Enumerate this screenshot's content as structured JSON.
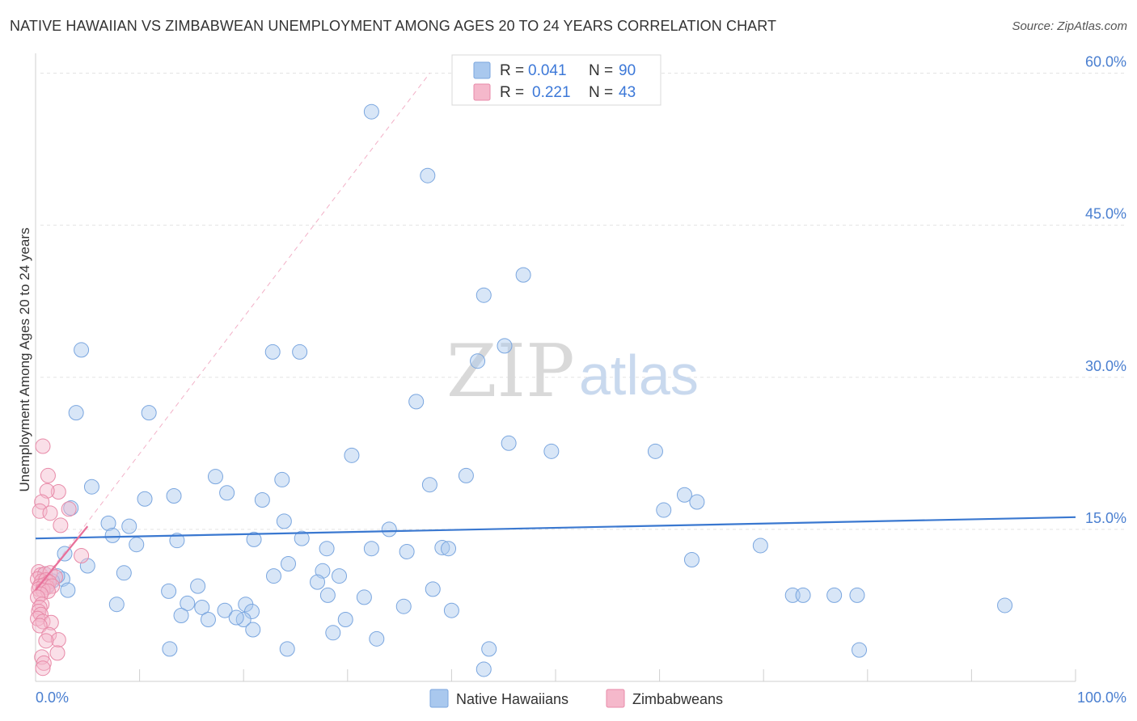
{
  "title": "NATIVE HAWAIIAN VS ZIMBABWEAN UNEMPLOYMENT AMONG AGES 20 TO 24 YEARS CORRELATION CHART",
  "source": "Source: ZipAtlas.com",
  "watermark": {
    "zip": "ZIP",
    "atlas": "atlas"
  },
  "colors": {
    "blue": "#a9c8ee",
    "blue_stroke": "#7aa6df",
    "blue_line": "#3a78d0",
    "pink": "#f5b8cb",
    "pink_stroke": "#e88aa8",
    "pink_line": "#e8709a",
    "tick": "#4a7fd0"
  },
  "legend": {
    "r_label": "R =",
    "n_label": "N =",
    "rows": [
      {
        "r": "0.041",
        "n": "90"
      },
      {
        "r": "0.221",
        "n": "43"
      }
    ]
  },
  "chart_data": {
    "type": "scatter",
    "title": "NATIVE HAWAIIAN VS ZIMBABWEAN UNEMPLOYMENT AMONG AGES 20 TO 24 YEARS CORRELATION CHART",
    "xlabel": "",
    "ylabel": "Unemployment Among Ages 20 to 24 years",
    "xlim": [
      0,
      100
    ],
    "ylim": [
      0,
      61
    ],
    "x_tick_labels": [
      {
        "value": 0,
        "label": "0.0%"
      },
      {
        "value": 100,
        "label": "100.0%"
      }
    ],
    "y_ticks": [
      {
        "value": 15,
        "label": "15.0%"
      },
      {
        "value": 30,
        "label": "30.0%"
      },
      {
        "value": 45,
        "label": "45.0%"
      },
      {
        "value": 60,
        "label": "60.0%"
      }
    ],
    "series": [
      {
        "name": "Native Hawaiians",
        "r": 0.041,
        "n": 90,
        "trend": {
          "x0": 0,
          "y0": 14.1,
          "x1": 100,
          "y1": 16.2
        },
        "points": [
          [
            32.3,
            56.2
          ],
          [
            37.7,
            49.9
          ],
          [
            46.9,
            40.1
          ],
          [
            43.1,
            38.1
          ],
          [
            45.1,
            33.1
          ],
          [
            4.4,
            32.7
          ],
          [
            22.8,
            32.5
          ],
          [
            25.4,
            32.5
          ],
          [
            42.5,
            31.6
          ],
          [
            36.6,
            27.6
          ],
          [
            3.9,
            26.5
          ],
          [
            10.9,
            26.5
          ],
          [
            45.5,
            23.5
          ],
          [
            30.4,
            22.3
          ],
          [
            49.6,
            22.7
          ],
          [
            59.6,
            22.7
          ],
          [
            17.3,
            20.2
          ],
          [
            23.7,
            19.9
          ],
          [
            41.4,
            20.3
          ],
          [
            37.9,
            19.4
          ],
          [
            5.4,
            19.2
          ],
          [
            13.3,
            18.3
          ],
          [
            18.4,
            18.6
          ],
          [
            10.5,
            18.0
          ],
          [
            21.8,
            17.9
          ],
          [
            62.4,
            18.4
          ],
          [
            63.6,
            17.7
          ],
          [
            3.4,
            17.1
          ],
          [
            60.4,
            16.9
          ],
          [
            7.0,
            15.6
          ],
          [
            9.0,
            15.3
          ],
          [
            23.9,
            15.8
          ],
          [
            34.0,
            15.0
          ],
          [
            7.4,
            14.4
          ],
          [
            21.0,
            14.0
          ],
          [
            25.6,
            14.1
          ],
          [
            13.6,
            13.9
          ],
          [
            9.7,
            13.5
          ],
          [
            28.0,
            13.1
          ],
          [
            32.3,
            13.1
          ],
          [
            39.1,
            13.2
          ],
          [
            39.7,
            13.1
          ],
          [
            35.7,
            12.8
          ],
          [
            69.7,
            13.4
          ],
          [
            2.8,
            12.6
          ],
          [
            63.1,
            12.0
          ],
          [
            5.0,
            11.4
          ],
          [
            24.3,
            11.6
          ],
          [
            8.5,
            10.7
          ],
          [
            22.9,
            10.4
          ],
          [
            27.6,
            10.9
          ],
          [
            29.2,
            10.4
          ],
          [
            2.6,
            10.1
          ],
          [
            1.2,
            9.5
          ],
          [
            15.6,
            9.4
          ],
          [
            27.1,
            9.8
          ],
          [
            38.2,
            9.1
          ],
          [
            12.8,
            8.9
          ],
          [
            14.6,
            7.7
          ],
          [
            28.1,
            8.5
          ],
          [
            31.6,
            8.3
          ],
          [
            72.8,
            8.5
          ],
          [
            73.8,
            8.5
          ],
          [
            76.8,
            8.5
          ],
          [
            79.0,
            8.5
          ],
          [
            93.2,
            7.5
          ],
          [
            7.8,
            7.6
          ],
          [
            16.0,
            7.3
          ],
          [
            18.2,
            7.0
          ],
          [
            20.2,
            7.6
          ],
          [
            20.8,
            6.9
          ],
          [
            35.4,
            7.4
          ],
          [
            40.0,
            7.0
          ],
          [
            14.0,
            6.5
          ],
          [
            16.6,
            6.1
          ],
          [
            20.0,
            6.1
          ],
          [
            19.3,
            6.3
          ],
          [
            29.8,
            6.1
          ],
          [
            20.9,
            5.1
          ],
          [
            28.6,
            4.8
          ],
          [
            32.8,
            4.2
          ],
          [
            12.9,
            3.2
          ],
          [
            24.2,
            3.2
          ],
          [
            43.6,
            3.2
          ],
          [
            79.2,
            3.1
          ],
          [
            43.1,
            1.2
          ],
          [
            2.1,
            10.4
          ],
          [
            1.6,
            9.9
          ],
          [
            0.9,
            10.6
          ],
          [
            3.1,
            9.0
          ]
        ]
      },
      {
        "name": "Zimbabweans",
        "r": 0.221,
        "n": 43,
        "trend": {
          "x0": 0,
          "y0": 9.0,
          "x1": 5.0,
          "y1": 15.3
        },
        "trend_extended": {
          "x0": 0,
          "y0": 9.0,
          "x1": 37.9,
          "y1": 60.0
        },
        "points": [
          [
            0.7,
            23.2
          ],
          [
            1.2,
            20.3
          ],
          [
            2.2,
            18.7
          ],
          [
            1.1,
            18.8
          ],
          [
            0.6,
            17.7
          ],
          [
            3.2,
            17.0
          ],
          [
            0.4,
            16.8
          ],
          [
            1.4,
            16.6
          ],
          [
            2.4,
            15.4
          ],
          [
            4.4,
            12.4
          ],
          [
            0.3,
            10.8
          ],
          [
            0.5,
            10.5
          ],
          [
            0.9,
            10.6
          ],
          [
            1.4,
            10.7
          ],
          [
            1.9,
            10.3
          ],
          [
            0.2,
            10.1
          ],
          [
            0.6,
            9.9
          ],
          [
            1.0,
            10.0
          ],
          [
            1.3,
            9.8
          ],
          [
            0.4,
            9.4
          ],
          [
            0.8,
            9.5
          ],
          [
            1.1,
            9.3
          ],
          [
            1.6,
            9.4
          ],
          [
            0.3,
            9.1
          ],
          [
            0.7,
            9.0
          ],
          [
            1.2,
            8.9
          ],
          [
            0.5,
            8.6
          ],
          [
            0.2,
            8.3
          ],
          [
            0.6,
            7.6
          ],
          [
            0.4,
            7.3
          ],
          [
            0.3,
            6.9
          ],
          [
            0.5,
            6.6
          ],
          [
            0.2,
            6.2
          ],
          [
            0.7,
            5.9
          ],
          [
            1.5,
            5.8
          ],
          [
            0.4,
            5.5
          ],
          [
            1.3,
            4.6
          ],
          [
            2.2,
            4.1
          ],
          [
            1.0,
            4.0
          ],
          [
            2.1,
            2.8
          ],
          [
            0.6,
            2.4
          ],
          [
            0.8,
            1.8
          ],
          [
            0.7,
            1.3
          ]
        ]
      }
    ],
    "legend_position": "top-center",
    "grid": true
  }
}
